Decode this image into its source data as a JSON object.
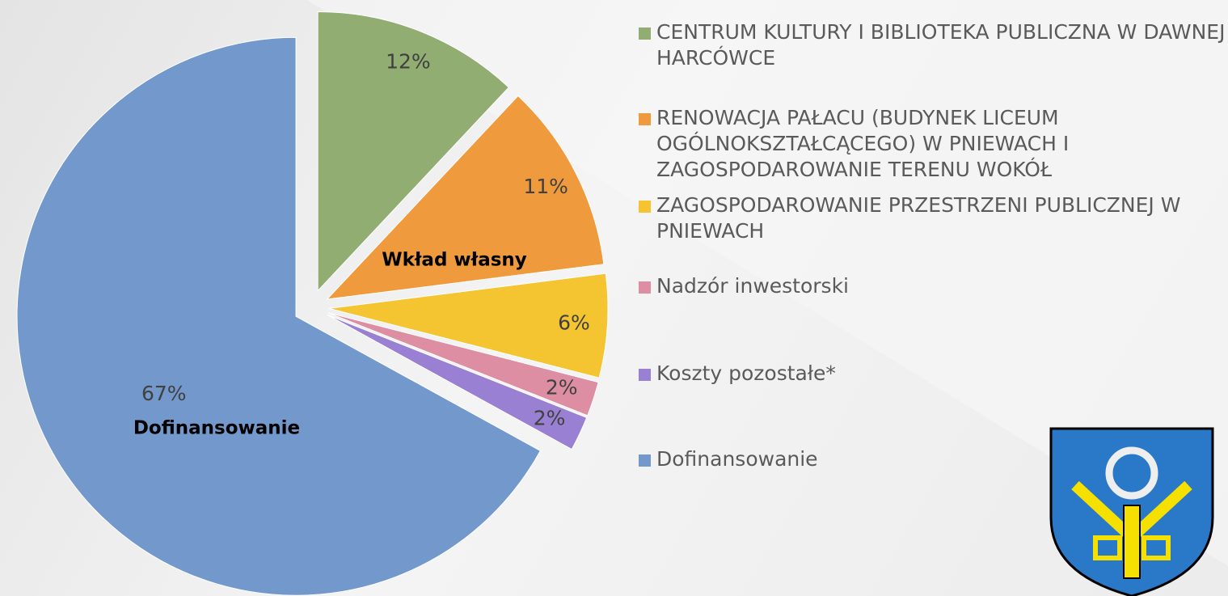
{
  "chart_data": {
    "type": "pie",
    "categories": [
      "CENTRUM KULTURY I BIBLIOTEKA PUBLICZNA W DAWNEJ HARCÓWCE",
      "RENOWACJA PAŁACU (BUDYNEK LICEUM OGÓLNOKSZTAŁCĄCEGO) W PNIEWACH I ZAGOSPODAROWANIE TERENU WOKÓŁ",
      "ZAGOSPODAROWANIE PRZESTRZENI PUBLICZNEJ W PNIEWACH",
      "Nadzór inwestorski",
      "Koszty pozostałe*",
      "Dofinansowanie"
    ],
    "values": [
      12,
      11,
      6,
      2,
      2,
      67
    ],
    "value_labels": [
      "12%",
      "11%",
      "6%",
      "2%",
      "2%",
      "67%"
    ],
    "colors": [
      "#91ad72",
      "#f09a3e",
      "#f4c531",
      "#de8ea3",
      "#9a80d2",
      "#7399cc"
    ],
    "annotations": [
      "Wkład własny",
      "Dofinansowanie"
    ],
    "legend": "right"
  }
}
